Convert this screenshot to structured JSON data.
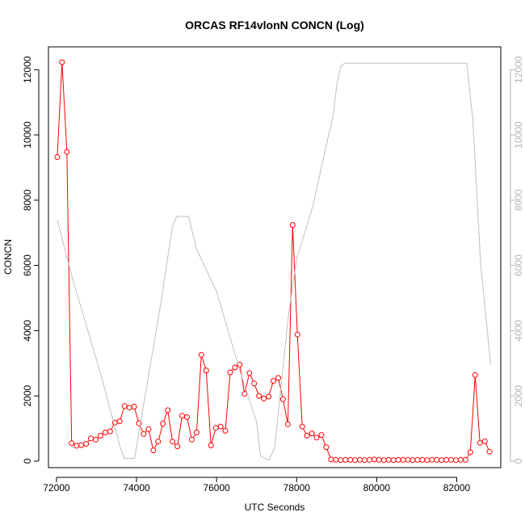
{
  "chart_data": {
    "type": "line",
    "title": "ORCAS RF14vlonN CONCN (Log)",
    "xlabel": "UTC Seconds",
    "ylabel": "CONCN",
    "xlim": [
      71800,
      83100
    ],
    "ylim": [
      -200,
      12700
    ],
    "x_ticks": [
      72000,
      74000,
      76000,
      78000,
      80000,
      82000
    ],
    "y_ticks": [
      0,
      2000,
      4000,
      6000,
      8000,
      10000,
      12000
    ],
    "right_ticks": [
      0,
      2000,
      4000,
      6000,
      8000,
      10000,
      12000
    ],
    "colors": {
      "primary": "#ff0000",
      "secondary": "#bebebe",
      "marker_fill": "#ffffff"
    },
    "series": [
      {
        "role": "primary",
        "x": [
          72020,
          72140,
          72260,
          72380,
          72500,
          72620,
          72740,
          72860,
          72980,
          73100,
          73220,
          73340,
          73460,
          73580,
          73700,
          73820,
          73940,
          74060,
          74180,
          74300,
          74420,
          74540,
          74660,
          74780,
          74900,
          75020,
          75140,
          75260,
          75380,
          75500,
          75620,
          75740,
          75860,
          75980,
          76100,
          76220,
          76340,
          76460,
          76580,
          76700,
          76820,
          76940,
          77060,
          77180,
          77300,
          77420,
          77540,
          77660,
          77780,
          77900,
          78020,
          78140,
          78260,
          78380,
          78500,
          78620,
          78740,
          78860,
          78980,
          79100,
          79220,
          79340,
          79460,
          79580,
          79700,
          79820,
          79940,
          80060,
          80180,
          80300,
          80420,
          80540,
          80660,
          80780,
          80900,
          81020,
          81140,
          81260,
          81380,
          81500,
          81620,
          81740,
          81860,
          81980,
          82100,
          82220,
          82340,
          82460,
          82580,
          82700,
          82820
        ],
        "y": [
          9320,
          12230,
          9480,
          550,
          470,
          490,
          530,
          700,
          660,
          780,
          880,
          910,
          1180,
          1220,
          1690,
          1640,
          1670,
          1160,
          830,
          980,
          330,
          600,
          1150,
          1560,
          600,
          450,
          1390,
          1350,
          660,
          880,
          3260,
          2780,
          480,
          1020,
          1060,
          930,
          2720,
          2870,
          2960,
          2060,
          2700,
          2380,
          2000,
          1920,
          1980,
          2460,
          2550,
          1900,
          1130,
          7240,
          3880,
          1060,
          780,
          850,
          720,
          800,
          430,
          50,
          40,
          30,
          40,
          40,
          30,
          40,
          30,
          40,
          50,
          40,
          30,
          40,
          30,
          40,
          40,
          40,
          30,
          40,
          40,
          30,
          40,
          40,
          30,
          40,
          40,
          30,
          40,
          40,
          270,
          2640,
          560,
          610,
          290
        ]
      },
      {
        "role": "secondary",
        "x": [
          72020,
          72400,
          73100,
          73600,
          73700,
          73950,
          74600,
          74900,
          75000,
          75300,
          75500,
          76000,
          76600,
          77000,
          77100,
          77300,
          77450,
          77800,
          78000,
          78400,
          78800,
          78900,
          79000,
          79100,
          79200,
          79400,
          80000,
          81000,
          81800,
          82100,
          82250,
          82400,
          82600,
          82850
        ],
        "y": [
          7400,
          5600,
          2700,
          400,
          80,
          80,
          4800,
          7200,
          7500,
          7500,
          6500,
          5200,
          2700,
          1200,
          150,
          30,
          400,
          4500,
          6200,
          7800,
          10000,
          10500,
          11500,
          12100,
          12200,
          12200,
          12200,
          12200,
          12200,
          12200,
          12200,
          10500,
          6000,
          2950
        ]
      }
    ]
  }
}
